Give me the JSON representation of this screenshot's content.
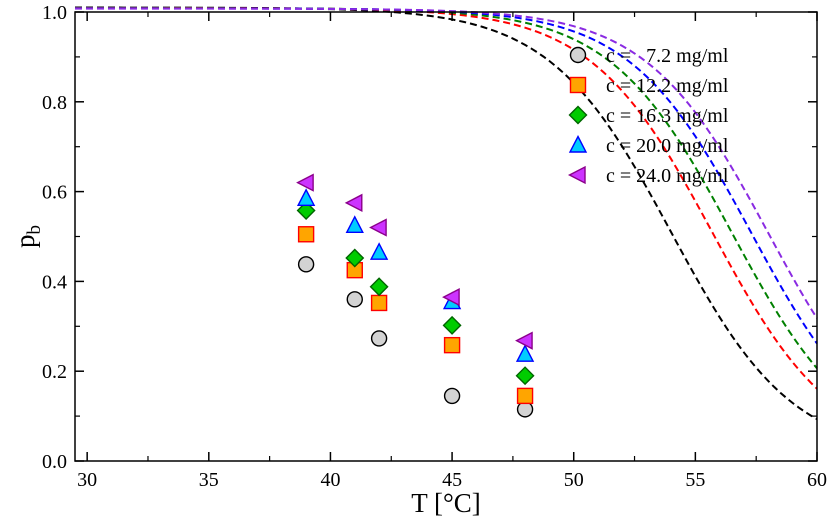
{
  "chart_data": {
    "type": "scatter",
    "title": "",
    "xlabel": "T [°C]",
    "ylabel_main": "p",
    "ylabel_sub": "b",
    "xlim": [
      29.5,
      60
    ],
    "ylim": [
      0,
      1.0
    ],
    "xticks": [
      30,
      35,
      40,
      45,
      50,
      55,
      60
    ],
    "yticks": [
      0.0,
      0.2,
      0.4,
      0.6,
      0.8,
      1.0
    ],
    "xtick_labels": [
      "30",
      "35",
      "40",
      "45",
      "50",
      "55",
      "60"
    ],
    "ytick_labels": [
      "0.0",
      "0.2",
      "0.4",
      "0.6",
      "0.8",
      "1.0"
    ],
    "legend_position": "top-right",
    "series": [
      {
        "name": "c =   7.2 mg/ml",
        "marker": "circle",
        "fill": "#d3d3d3",
        "edge": "#000000",
        "curve_color": "#000000",
        "x": [
          39,
          41,
          42,
          45,
          48
        ],
        "y": [
          0.438,
          0.36,
          0.273,
          0.145,
          0.115
        ],
        "curve": {
          "a": 0.2,
          "b": 54.0,
          "c": 0.01
        }
      },
      {
        "name": "c = 12.2 mg/ml",
        "marker": "square",
        "fill": "#ffa500",
        "edge": "#ff0000",
        "curve_color": "#ff0000",
        "x": [
          39,
          41,
          42,
          45,
          48
        ],
        "y": [
          0.505,
          0.425,
          0.352,
          0.258,
          0.145
        ],
        "curve": {
          "a": 0.2,
          "b": 55.7,
          "c": 0.009
        }
      },
      {
        "name": "c = 16.3 mg/ml",
        "marker": "diamond",
        "fill": "#00cc00",
        "edge": "#006400",
        "curve_color": "#008000",
        "x": [
          39,
          41,
          42,
          45,
          48
        ],
        "y": [
          0.558,
          0.452,
          0.388,
          0.302,
          0.19
        ],
        "curve": {
          "a": 0.2,
          "b": 56.5,
          "c": 0.0085
        }
      },
      {
        "name": "c = 20.0 mg/ml",
        "marker": "triangle-up",
        "fill": "#00ccff",
        "edge": "#0000ff",
        "curve_color": "#0000ff",
        "x": [
          39,
          41,
          42,
          45,
          48
        ],
        "y": [
          0.585,
          0.525,
          0.465,
          0.355,
          0.238
        ],
        "curve": {
          "a": 0.2,
          "b": 57.3,
          "c": 0.008
        }
      },
      {
        "name": "c = 24.0 mg/ml",
        "marker": "triangle-left",
        "fill": "#cc33ff",
        "edge": "#8b008b",
        "curve_color": "#8a2be2",
        "x": [
          39,
          41,
          42,
          45,
          48
        ],
        "y": [
          0.62,
          0.575,
          0.52,
          0.365,
          0.268
        ],
        "curve": {
          "a": 0.2,
          "b": 58.0,
          "c": 0.0075
        }
      }
    ]
  }
}
